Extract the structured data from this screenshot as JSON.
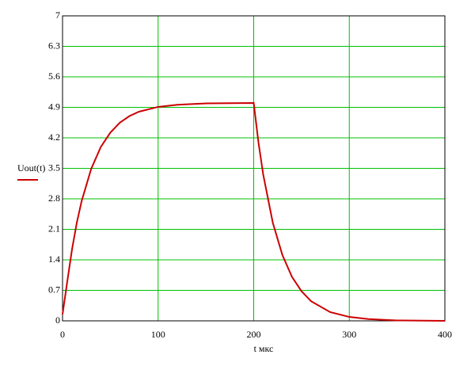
{
  "chart_data": {
    "type": "line",
    "xlabel": "t  мкс",
    "x": [
      0,
      5,
      10,
      15,
      20,
      30,
      40,
      50,
      60,
      70,
      80,
      100,
      120,
      150,
      200,
      205,
      210,
      220,
      230,
      240,
      250,
      260,
      280,
      300,
      320,
      350,
      400
    ],
    "series": [
      {
        "name": "Uout(t)",
        "color": "#cc0000",
        "values": [
          0.15,
          0.91,
          1.65,
          2.26,
          2.75,
          3.49,
          3.99,
          4.32,
          4.55,
          4.7,
          4.8,
          4.91,
          4.96,
          4.99,
          5.0,
          4.09,
          3.35,
          2.25,
          1.51,
          1.01,
          0.68,
          0.45,
          0.2,
          0.09,
          0.04,
          0.01,
          0
        ]
      }
    ],
    "xlim": [
      0,
      400
    ],
    "xticks": [
      0,
      100,
      200,
      300,
      400
    ],
    "ylim": [
      0,
      7
    ],
    "yticks": [
      0,
      0.7,
      1.4,
      2.1,
      2.8,
      3.5,
      4.2,
      4.9,
      5.6,
      6.3,
      7
    ],
    "grid": true,
    "grid_color": "#00c000"
  }
}
